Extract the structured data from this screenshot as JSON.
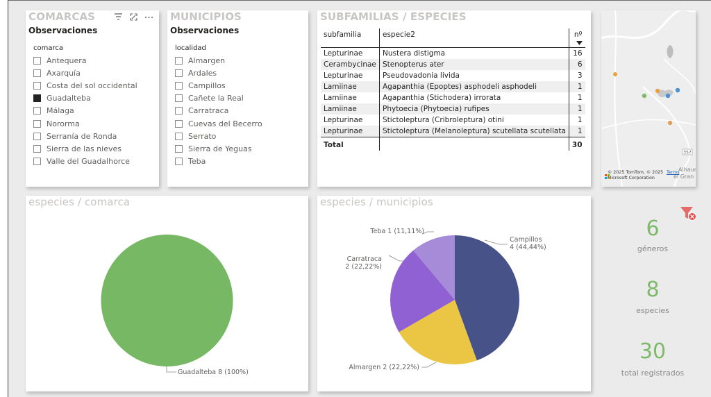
{
  "comarcas": {
    "title": "COMARCAS",
    "header": "Observaciones",
    "field": "comarca",
    "items": [
      {
        "label": "Antequera",
        "checked": false
      },
      {
        "label": "Axarquía",
        "checked": false
      },
      {
        "label": "Costa del sol occidental",
        "checked": false
      },
      {
        "label": "Guadalteba",
        "checked": true
      },
      {
        "label": "Málaga",
        "checked": false
      },
      {
        "label": "Nororma",
        "checked": false
      },
      {
        "label": "Serranía de Ronda",
        "checked": false
      },
      {
        "label": "Sierra de las nieves",
        "checked": false
      },
      {
        "label": "Valle del Guadalhorce",
        "checked": false
      }
    ]
  },
  "municipios": {
    "title": "MUNICIPIOS",
    "header": "Observaciones",
    "field": "localidad",
    "items": [
      {
        "label": "Almargen",
        "checked": false
      },
      {
        "label": "Ardales",
        "checked": false
      },
      {
        "label": "Campillos",
        "checked": false
      },
      {
        "label": "Cañete la Real",
        "checked": false
      },
      {
        "label": "Carratraca",
        "checked": false
      },
      {
        "label": "Cuevas del Becerro",
        "checked": false
      },
      {
        "label": "Serrato",
        "checked": false
      },
      {
        "label": "Sierra de Yeguas",
        "checked": false
      },
      {
        "label": "Teba",
        "checked": false
      }
    ]
  },
  "species_table": {
    "title": "SUBFAMILIAS / ESPECIES",
    "columns": [
      "subfamilia",
      "especie2",
      "nº"
    ],
    "rows": [
      {
        "subfamilia": "Lepturinae",
        "especie": "Nustera distigma",
        "n": "16"
      },
      {
        "subfamilia": "Cerambycinae",
        "especie": "Stenopterus ater",
        "n": "6"
      },
      {
        "subfamilia": "Lepturinae",
        "especie": "Pseudovadonia livida",
        "n": "3"
      },
      {
        "subfamilia": "Lamiinae",
        "especie": "Agapanthia (Epoptes) asphodeli asphodeli",
        "n": "1"
      },
      {
        "subfamilia": "Lamiinae",
        "especie": "Agapanthia (Stichodera) irrorata",
        "n": "1"
      },
      {
        "subfamilia": "Lamiinae",
        "especie": "Phytoecia (Phytoecia) rufipes",
        "n": "1"
      },
      {
        "subfamilia": "Lepturinae",
        "especie": "Stictoleptura (Cribroleptura) otini",
        "n": "1"
      },
      {
        "subfamilia": "Lepturinae",
        "especie": "Stictoleptura (Melanoleptura) scutellata scutellata",
        "n": "1"
      }
    ],
    "total_label": "Total",
    "total_value": "30"
  },
  "map": {
    "attribution": "© 2025 TomTom, © 2025 Microsoft Corporation",
    "terms": "Terms",
    "road_label": "357",
    "place_label_1": "Alhaur",
    "place_label_2": "el Gran",
    "marker_colors": [
      "#e8a23b",
      "#7fb96b",
      "#4a90d9",
      "#a98bd6",
      "#e0a060"
    ]
  },
  "pie_comarca": {
    "title": "especies / comarca",
    "color": "#77b864"
  },
  "pie_municipios": {
    "title": "especies / municipios",
    "colors": [
      "#475388",
      "#ebc644",
      "#9061d3",
      "#a68bd9"
    ]
  },
  "chart_data": [
    {
      "type": "pie",
      "title": "especies / comarca",
      "categories": [
        "Guadalteba"
      ],
      "values": [
        8
      ],
      "labels": [
        "Guadalteba 8 (100%)"
      ]
    },
    {
      "type": "pie",
      "title": "especies / municipios",
      "categories": [
        "Campillos",
        "Almargen",
        "Carratraca",
        "Teba"
      ],
      "values": [
        4,
        2,
        2,
        1
      ],
      "labels": [
        "Campillos\n4 (44,44%)",
        "Almargen 2 (22,22%)",
        "Carratraca\n2 (22,22%)",
        "Teba 1 (11,11%)"
      ]
    }
  ],
  "kpis": [
    {
      "value": "6",
      "label": "géneros"
    },
    {
      "value": "8",
      "label": "especies"
    },
    {
      "value": "30",
      "label": "total registrados"
    }
  ],
  "clear_filters_icon": "filter-clear-icon"
}
